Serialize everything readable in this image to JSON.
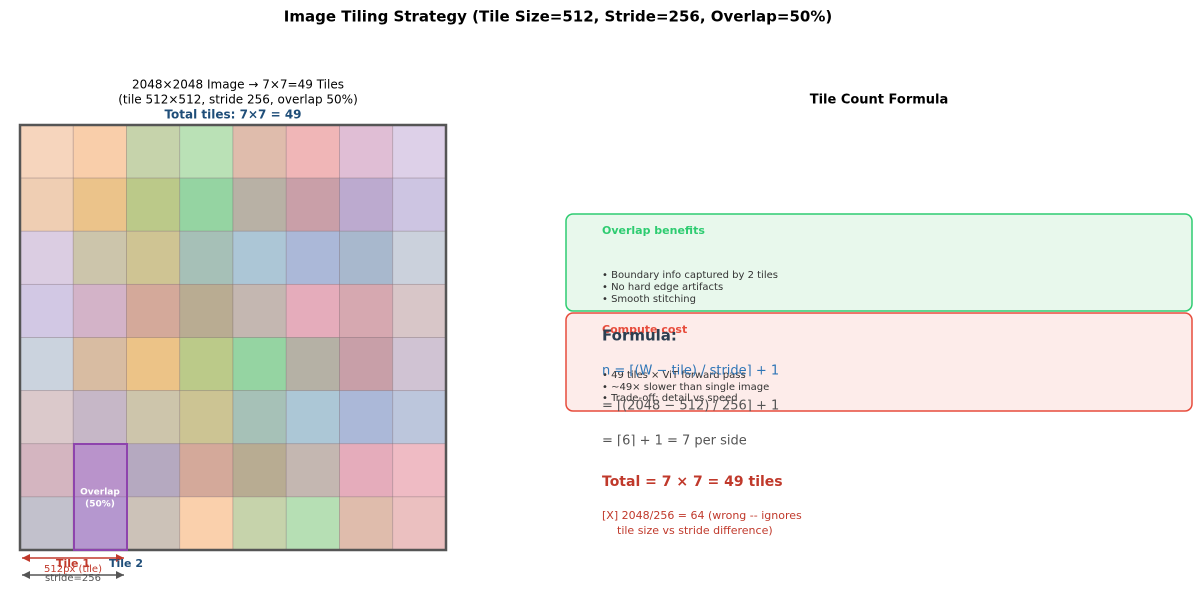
{
  "header": {
    "title": "Image Tiling Strategy (Tile Size=512, Stride=256, Overlap=50%)"
  },
  "left_panel": {
    "title_lines": [
      "2048×2048 Image → 7×7=49 Tiles",
      "(tile 512×512, stride 256, overlap 50%)"
    ],
    "total": "Total tiles: 7×7 = 49",
    "overlap_label_lines": [
      "Overlap",
      "(50%)"
    ],
    "tile1": "Tile 1",
    "tile2": "Tile 2",
    "tile_size": "512px (tile)",
    "stride": "stride=256"
  },
  "right_panel": {
    "title": "Tile Count Formula",
    "benefits": {
      "title": "Overlap benefits",
      "items": [
        "• Boundary info captured by 2 tiles",
        "• No hard edge artifacts",
        "• Smooth stitching"
      ]
    },
    "cost": {
      "title": "Compute cost",
      "items": [
        "• 49 tiles × ViT forward pass",
        "• ~49× slower than single image",
        "• Trade-off: detail vs speed"
      ]
    },
    "formula": {
      "heading": "Formula:",
      "lines": [
        "n = ⌈(W − tile) / stride⌉ + 1",
        "= ⌈(2048 − 512) / 256⌉ + 1",
        "= ⌈6⌉ + 1 = 7  per side"
      ],
      "total": "Total = 7 × 7 = 49 tiles",
      "wrong_lines": [
        "[X]  2048/256 = 64  (wrong -- ignores",
        "tile size vs stride difference)"
      ]
    }
  }
}
